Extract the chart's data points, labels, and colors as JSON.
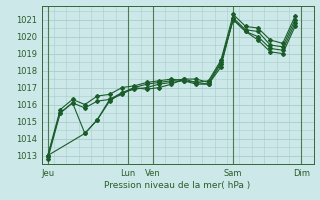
{
  "bg_color": "#cce8e8",
  "grid_color": "#aacccc",
  "line_color": "#1a5c2a",
  "marker_color": "#1a5c2a",
  "xlabel": "Pression niveau de la mer( hPa )",
  "ylim": [
    1012.5,
    1021.8
  ],
  "yticks": [
    1013,
    1014,
    1015,
    1016,
    1017,
    1018,
    1019,
    1020,
    1021
  ],
  "xlim": [
    0,
    22
  ],
  "day_labels": [
    "Jeu",
    "Lun",
    "Ven",
    "Sam",
    "Dim"
  ],
  "day_positions": [
    0.5,
    7.0,
    9.0,
    15.5,
    21.0
  ],
  "vline_positions": [
    0.5,
    7.0,
    9.0,
    15.5,
    21.0
  ],
  "line1_x": [
    0.5,
    1.5,
    2.5,
    3.5,
    4.5,
    5.5,
    6.5,
    7.5,
    8.5,
    9.5,
    10.5,
    11.5,
    12.5,
    13.5,
    14.5,
    15.5,
    16.5,
    17.5,
    18.5,
    19.5,
    20.5
  ],
  "line1_y": [
    1012.8,
    1015.5,
    1016.1,
    1015.8,
    1016.2,
    1016.3,
    1016.7,
    1016.9,
    1017.0,
    1017.2,
    1017.3,
    1017.4,
    1017.2,
    1017.2,
    1018.2,
    1021.1,
    1020.4,
    1020.3,
    1019.5,
    1019.4,
    1021.0
  ],
  "line2_x": [
    0.5,
    1.5,
    2.5,
    3.5,
    4.5,
    5.5,
    6.5,
    7.5,
    8.5,
    9.5,
    10.5,
    11.5,
    12.5,
    13.5,
    14.5,
    15.5,
    16.5,
    17.5,
    18.5,
    19.5,
    20.5
  ],
  "line2_y": [
    1013.0,
    1015.7,
    1016.3,
    1016.0,
    1016.5,
    1016.6,
    1017.0,
    1017.1,
    1017.3,
    1017.4,
    1017.5,
    1017.4,
    1017.3,
    1017.4,
    1018.6,
    1021.3,
    1020.6,
    1020.5,
    1019.8,
    1019.6,
    1021.2
  ],
  "line3_x": [
    0.5,
    3.5,
    4.5,
    5.5,
    6.5,
    7.5,
    8.5,
    9.5,
    10.5,
    11.5,
    12.5,
    13.5,
    14.5,
    15.5,
    16.5,
    17.5,
    18.5,
    19.5,
    20.5
  ],
  "line3_y": [
    1013.0,
    1014.3,
    1015.1,
    1016.3,
    1016.6,
    1017.0,
    1017.2,
    1017.3,
    1017.4,
    1017.5,
    1017.5,
    1017.3,
    1018.5,
    1021.0,
    1020.3,
    1020.0,
    1019.3,
    1019.2,
    1020.8
  ],
  "line4_x": [
    0.5,
    1.5,
    2.5,
    3.5,
    4.5,
    5.5,
    6.5,
    7.5,
    8.5,
    9.5,
    10.5,
    11.5,
    12.5,
    13.5,
    14.5,
    15.5,
    16.5,
    17.5,
    18.5,
    19.5,
    20.5
  ],
  "line4_y": [
    1013.0,
    1015.5,
    1016.1,
    1014.3,
    1015.1,
    1016.2,
    1016.7,
    1017.0,
    1016.9,
    1017.0,
    1017.2,
    1017.5,
    1017.3,
    1017.2,
    1018.4,
    1021.0,
    1020.3,
    1019.8,
    1019.1,
    1019.0,
    1020.6
  ]
}
